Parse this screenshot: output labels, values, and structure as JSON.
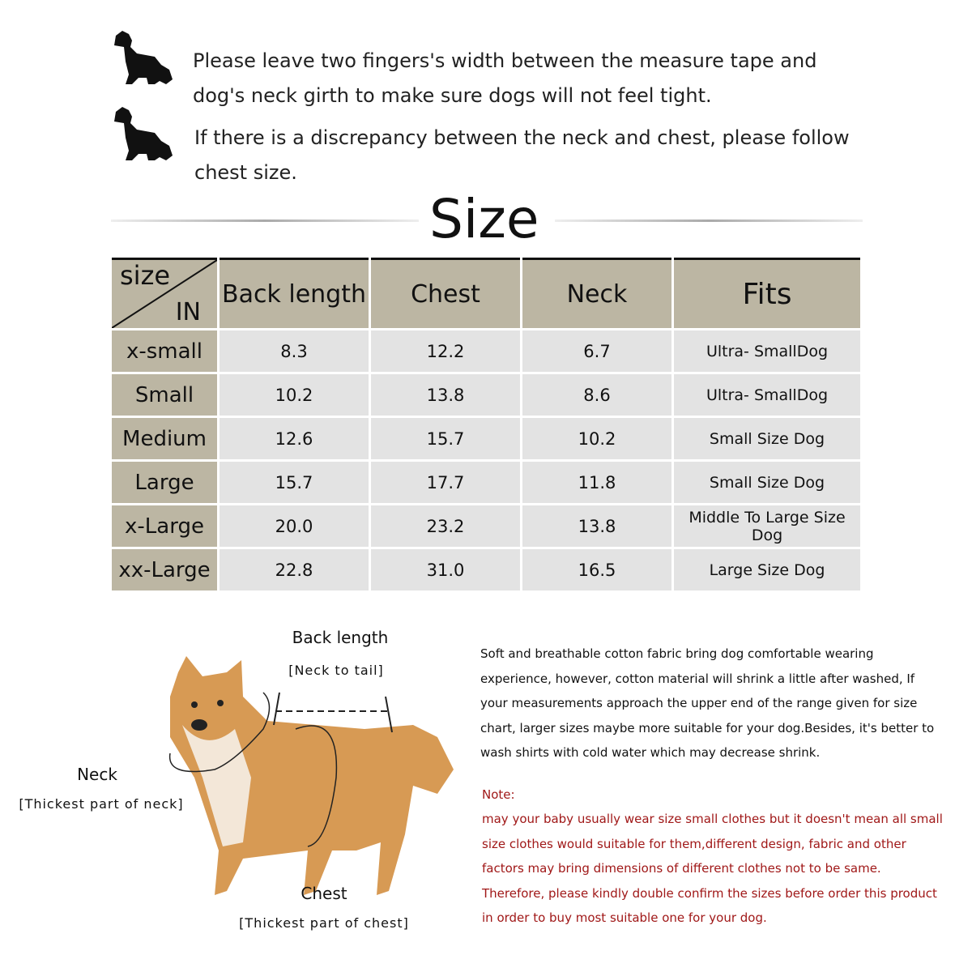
{
  "tips": [
    {
      "icon": "dog-icon",
      "text": "Please leave two fingers's width between the measure tape and dog's neck girth to make sure dogs will not feel tight."
    },
    {
      "icon": "dog-icon",
      "text": "If there is a discrepancy between the neck and chest, please follow chest size."
    }
  ],
  "title": "Size",
  "table": {
    "corner_top": "size",
    "corner_bottom": "IN",
    "headers": [
      "Back length",
      "Chest",
      "Neck",
      "Fits"
    ],
    "rows": [
      [
        "x-small",
        "8.3",
        "12.2",
        "6.7",
        "Ultra- SmallDog"
      ],
      [
        "Small",
        "10.2",
        "13.8",
        "8.6",
        "Ultra- SmallDog"
      ],
      [
        "Medium",
        "12.6",
        "15.7",
        "10.2",
        "Small Size Dog"
      ],
      [
        "Large",
        "15.7",
        "17.7",
        "11.8",
        "Small Size Dog"
      ],
      [
        "x-Large",
        "20.0",
        "23.2",
        "13.8",
        "Middle To Large Size Dog"
      ],
      [
        "xx-Large",
        "22.8",
        "31.0",
        "16.5",
        "Large Size Dog"
      ]
    ],
    "header_color": "#bcb6a3",
    "cell_color": "#e3e3e3"
  },
  "diagram": {
    "back": {
      "label": "Back length",
      "sub": "[Neck to tail]"
    },
    "neck": {
      "label": "Neck",
      "sub": "[Thickest part of neck]"
    },
    "chest": {
      "label": "Chest",
      "sub": "[Thickest part of chest]"
    }
  },
  "description": "Soft and breathable cotton fabric bring dog comfortable wearing experience, however, cotton material will shrink a little after washed, If your measurements approach the upper end of the range given for size chart, larger sizes maybe more suitable for your dog.Besides, it's better to wash shirts with cold water which may decrease shrink.",
  "note": {
    "label": "Note:",
    "text": "may your baby usually wear size small clothes but it doesn't mean all small size clothes would suitable for them,different design, fabric and other factors may bring dimensions of different clothes not to be same. Therefore, please kindly double confirm the sizes before order this product in order to buy most suitable one for your dog.",
    "color": "#a01818"
  }
}
